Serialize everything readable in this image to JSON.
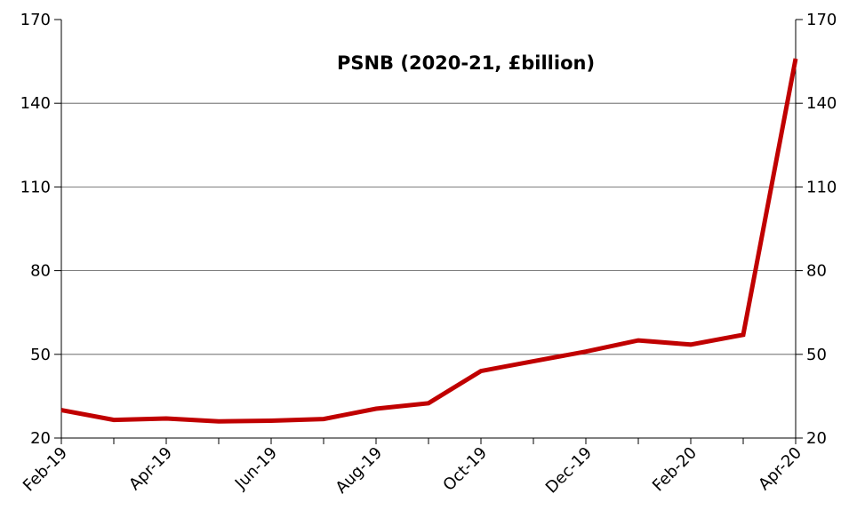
{
  "chart_data": {
    "type": "line",
    "title": "PSNB (2020-21, £billion)",
    "xlabel": "",
    "ylabel": "",
    "x": [
      "Feb-19",
      "Mar-19",
      "Apr-19",
      "May-19",
      "Jun-19",
      "Jul-19",
      "Aug-19",
      "Sep-19",
      "Oct-19",
      "Nov-19",
      "Dec-19",
      "Jan-20",
      "Feb-20",
      "Mar-20",
      "Apr-20"
    ],
    "x_tick_labels": [
      "Feb-19",
      "Apr-19",
      "Jun-19",
      "Aug-19",
      "Oct-19",
      "Dec-19",
      "Feb-20",
      "Apr-20"
    ],
    "y_ticks": [
      20,
      50,
      80,
      110,
      140,
      170
    ],
    "ylim": [
      20,
      170
    ],
    "secondary_y_axis": true,
    "grid": "horizontal",
    "legend": "none",
    "series": [
      {
        "color": "#c00000",
        "values": [
          30,
          26.5,
          27,
          26,
          26.2,
          26.8,
          30.5,
          32.5,
          44,
          47.5,
          51,
          55,
          53.5,
          57,
          156
        ]
      }
    ]
  }
}
